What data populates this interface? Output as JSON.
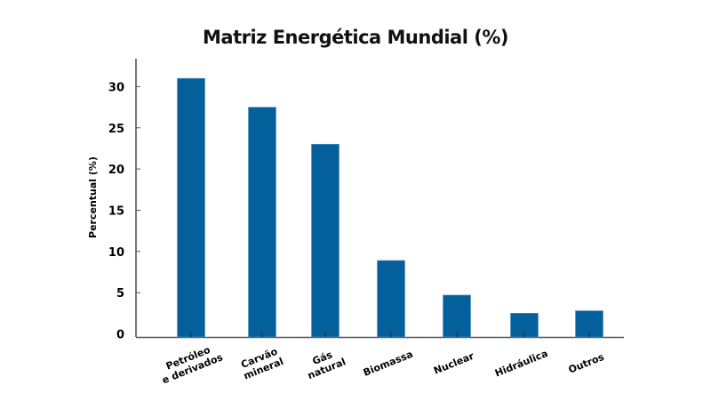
{
  "chart_data": {
    "type": "bar",
    "title": "Matriz Energética Mundial (%)",
    "xlabel": "",
    "ylabel": "Percentual (%)",
    "categories": [
      [
        "Petróleo",
        "e derivados"
      ],
      [
        "Carvão",
        "mineral"
      ],
      [
        "Gás",
        "natural"
      ],
      [
        "Biomassa"
      ],
      [
        "Nuclear"
      ],
      [
        "Hidráulica"
      ],
      [
        "Outros"
      ]
    ],
    "category_names": [
      "Petróleo e derivados",
      "Carvão mineral",
      "Gás natural",
      "Biomassa",
      "Nuclear",
      "Hidráulica",
      "Outros"
    ],
    "values": [
      31.0,
      27.5,
      23.0,
      8.9,
      4.7,
      2.5,
      2.8
    ],
    "ylim": [
      0,
      33
    ],
    "yticks": [
      0,
      5,
      10,
      15,
      20,
      25,
      30
    ],
    "grid": false,
    "legend": null,
    "bar_color": "#03609a"
  }
}
